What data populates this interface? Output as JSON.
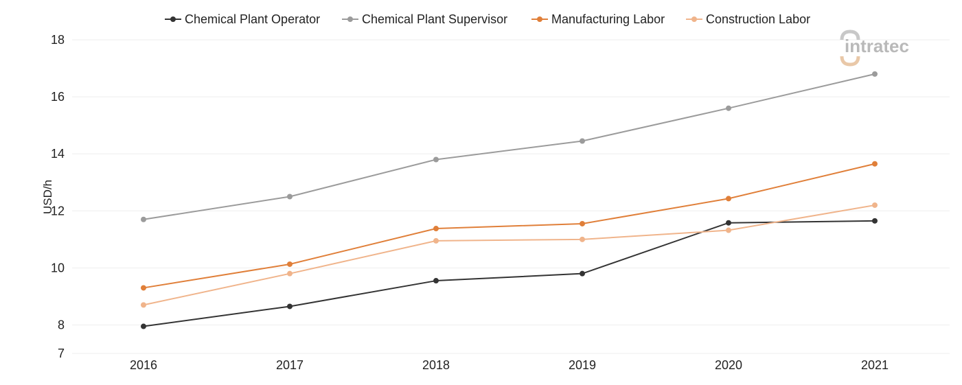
{
  "colors": {
    "chemical_plant_operator": "#333333",
    "chemical_plant_supervisor": "#9b9b9b",
    "manufacturing_labor": "#e07f39",
    "construction_labor": "#f0b48b",
    "grid": "#eeeeee",
    "watermark": "#c8c8c8",
    "watermark_accent": "#e9c8a8"
  },
  "watermark": {
    "text": "intratec"
  },
  "chart_data": {
    "type": "line",
    "title": "",
    "xlabel": "",
    "ylabel": "USD/h",
    "categories": [
      "2016",
      "2017",
      "2018",
      "2019",
      "2020",
      "2021"
    ],
    "ylim": [
      7,
      18
    ],
    "yticks": [
      7,
      8,
      10,
      12,
      14,
      16,
      18
    ],
    "grid": true,
    "legend": "top-center",
    "series": [
      {
        "name": "Chemical Plant Operator",
        "values": [
          7.95,
          8.65,
          9.55,
          9.8,
          11.58,
          11.65
        ]
      },
      {
        "name": "Chemical Plant Supervisor",
        "values": [
          11.7,
          12.5,
          13.8,
          14.45,
          15.6,
          16.8
        ]
      },
      {
        "name": "Manufacturing Labor",
        "values": [
          9.3,
          10.13,
          11.38,
          11.55,
          12.43,
          13.65
        ]
      },
      {
        "name": "Construction Labor",
        "values": [
          8.7,
          9.8,
          10.95,
          11.0,
          11.32,
          12.2
        ]
      }
    ]
  }
}
